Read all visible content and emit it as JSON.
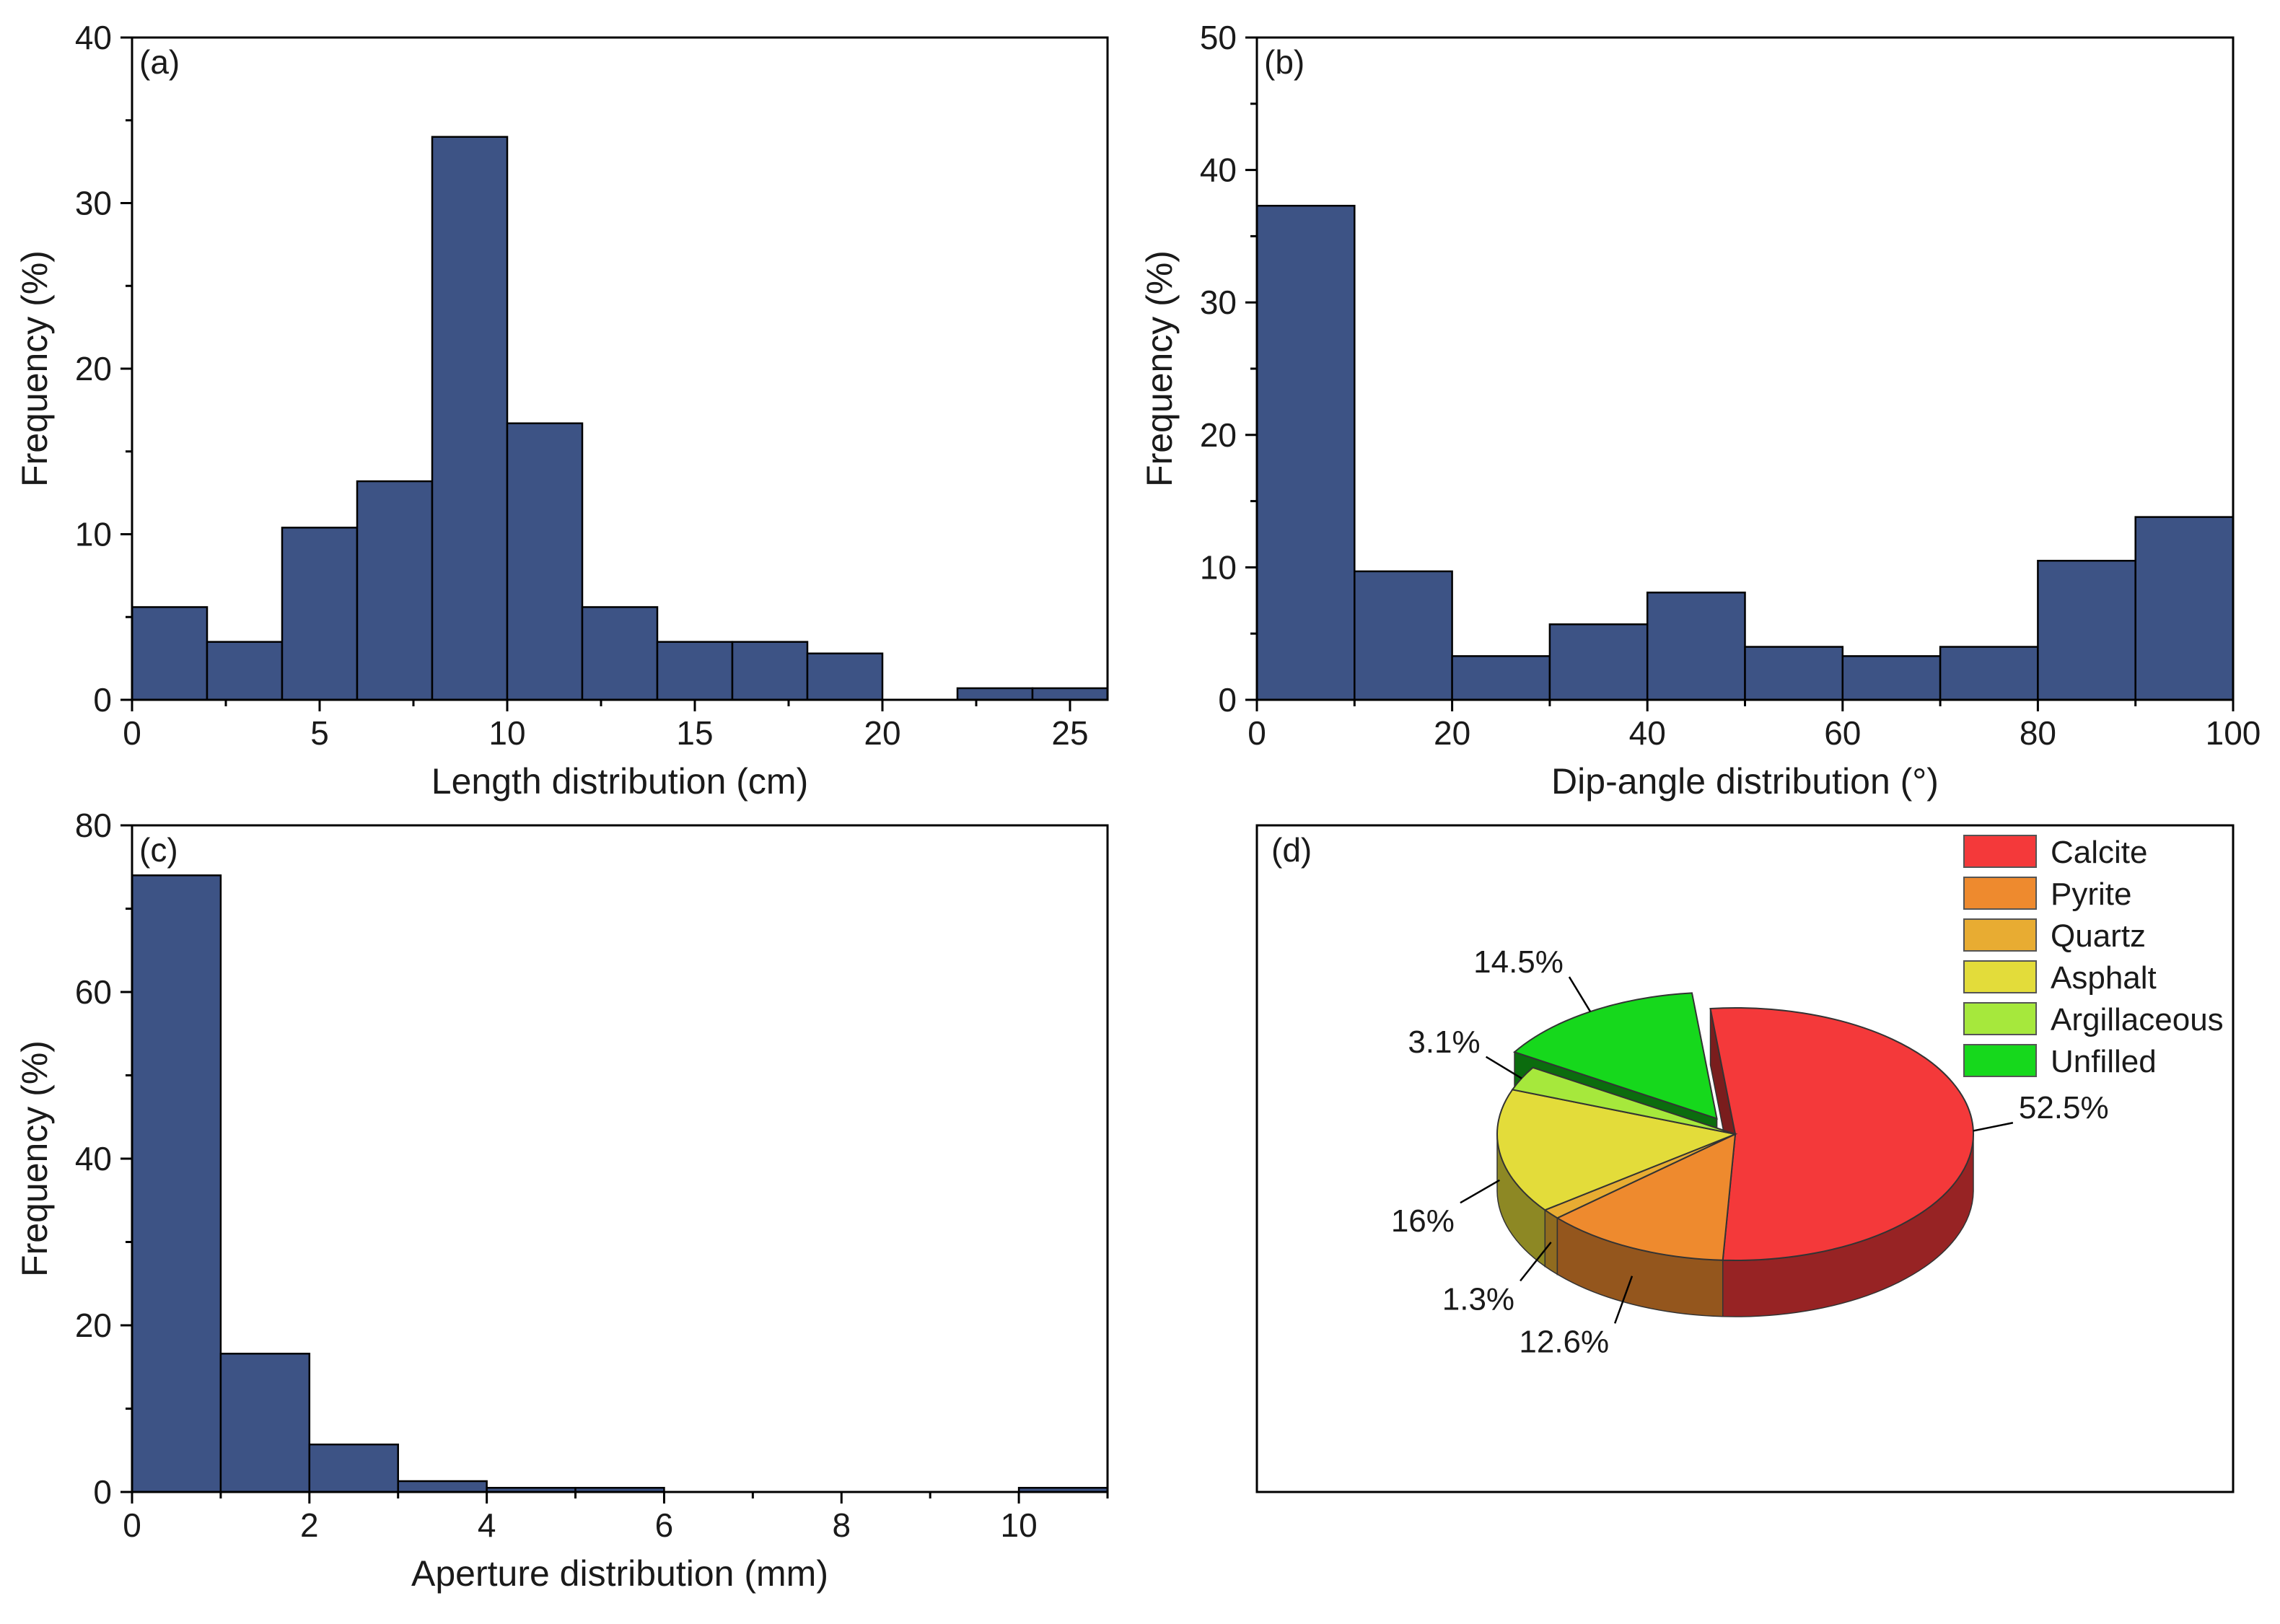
{
  "chart_data": [
    {
      "type": "bar",
      "panel_label": "(a)",
      "xlabel": "Length distribution (cm)",
      "ylabel": "Frequency (%)",
      "bin_edges": [
        0,
        2,
        4,
        6,
        8,
        10,
        12,
        14,
        16,
        18,
        20,
        22,
        24,
        26
      ],
      "values": [
        5.6,
        3.5,
        10.4,
        13.2,
        34.0,
        16.7,
        5.6,
        3.5,
        3.5,
        2.8,
        0,
        0.7,
        0.7
      ],
      "xlim": [
        0,
        26
      ],
      "ylim": [
        0,
        40
      ],
      "x_ticks": [
        "0",
        "5",
        "10",
        "15",
        "20",
        "25"
      ],
      "y_ticks": [
        "0",
        "10",
        "20",
        "30",
        "40"
      ],
      "color": "#3d5385"
    },
    {
      "type": "bar",
      "panel_label": "(b)",
      "xlabel": "Dip-angle distribution (°)",
      "ylabel": "Frequency (%)",
      "bin_edges": [
        0,
        10,
        20,
        30,
        40,
        50,
        60,
        70,
        80,
        90,
        100
      ],
      "values": [
        37.3,
        9.7,
        3.3,
        5.7,
        8.1,
        4.0,
        3.3,
        4.0,
        10.5,
        13.8
      ],
      "xlim": [
        0,
        100
      ],
      "ylim": [
        0,
        50
      ],
      "x_ticks": [
        "0",
        "20",
        "40",
        "60",
        "80",
        "100"
      ],
      "y_ticks": [
        "0",
        "10",
        "20",
        "30",
        "40",
        "50"
      ],
      "color": "#3d5385"
    },
    {
      "type": "bar",
      "panel_label": "(c)",
      "xlabel": "Aperture distribution (mm)",
      "ylabel": "Frequency (%)",
      "bin_edges": [
        0,
        1,
        2,
        3,
        4,
        5,
        6,
        7,
        8,
        9,
        10,
        11
      ],
      "values": [
        74.0,
        16.6,
        5.7,
        1.3,
        0.5,
        0.5,
        0,
        0,
        0,
        0,
        0.5
      ],
      "xlim": [
        0,
        11
      ],
      "ylim": [
        0,
        80
      ],
      "x_ticks": [
        "0",
        "2",
        "4",
        "6",
        "8",
        "10"
      ],
      "y_ticks": [
        "0",
        "20",
        "40",
        "60",
        "80"
      ],
      "color": "#3d5385"
    },
    {
      "type": "pie",
      "panel_label": "(d)",
      "style": "3d-exploded",
      "exploded": [
        "Unfilled"
      ],
      "legend_placement": "top-right",
      "slices": [
        {
          "name": "Calcite",
          "value": 52.5,
          "label": "52.5%",
          "color": "#f4393a"
        },
        {
          "name": "Pyrite",
          "value": 12.6,
          "label": "12.6%",
          "color": "#ee8a2e"
        },
        {
          "name": "Quartz",
          "value": 1.3,
          "label": "1.3%",
          "color": "#e8ac32"
        },
        {
          "name": "Asphalt",
          "value": 16,
          "label": "16%",
          "color": "#e3dc3a"
        },
        {
          "name": "Argillaceous",
          "value": 3.1,
          "label": "3.1%",
          "color": "#a6e83c"
        },
        {
          "name": "Unfilled",
          "value": 14.5,
          "label": "14.5%",
          "color": "#16d81c"
        }
      ]
    }
  ]
}
